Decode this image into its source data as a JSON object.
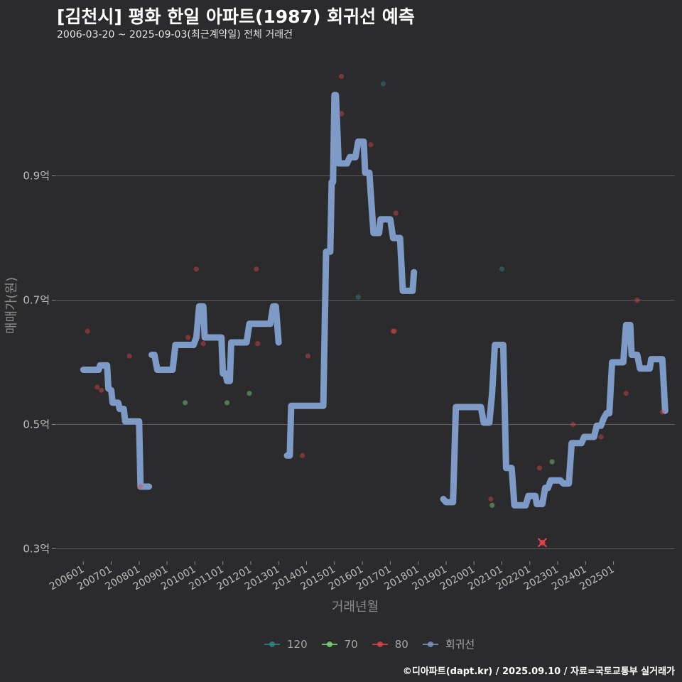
{
  "header": {
    "title": "[김천시] 평화 한일 아파트(1987) 회귀선 예측",
    "subtitle": "2006-03-20 ~ 2025-09-03(최근계약일) 전체 거래건"
  },
  "caption": "©디아파트(dapt.kr) / 2025.09.10 / 자료=국토교통부 실거래가",
  "chart_data": {
    "type": "line",
    "title": "[김천시] 평화 한일 아파트(1987) 회귀선 예측",
    "xlabel": "거래년월",
    "ylabel": "매매가(원)",
    "ylim": [
      0.28,
      1.08
    ],
    "xlim": [
      2005.0,
      2027.2
    ],
    "grid": true,
    "legend_position": "bottom",
    "y_ticks": [
      {
        "value": 0.3,
        "label": "0.3억"
      },
      {
        "value": 0.5,
        "label": "0.5억"
      },
      {
        "value": 0.7,
        "label": "0.7억"
      },
      {
        "value": 0.9,
        "label": "0.9억"
      }
    ],
    "x_ticks": [
      {
        "value": 2006.0,
        "label": "200601"
      },
      {
        "value": 2007.0,
        "label": "200701"
      },
      {
        "value": 2008.0,
        "label": "200801"
      },
      {
        "value": 2009.0,
        "label": "200901"
      },
      {
        "value": 2010.0,
        "label": "201001"
      },
      {
        "value": 2011.0,
        "label": "201101"
      },
      {
        "value": 2012.0,
        "label": "201201"
      },
      {
        "value": 2013.0,
        "label": "201301"
      },
      {
        "value": 2014.0,
        "label": "201401"
      },
      {
        "value": 2015.0,
        "label": "201501"
      },
      {
        "value": 2016.0,
        "label": "201601"
      },
      {
        "value": 2017.0,
        "label": "201701"
      },
      {
        "value": 2018.0,
        "label": "201801"
      },
      {
        "value": 2019.0,
        "label": "201901"
      },
      {
        "value": 2020.0,
        "label": "202001"
      },
      {
        "value": 2021.0,
        "label": "202101"
      },
      {
        "value": 2022.0,
        "label": "202201"
      },
      {
        "value": 2023.0,
        "label": "202301"
      },
      {
        "value": 2024.0,
        "label": "202401"
      },
      {
        "value": 2025.0,
        "label": "202501"
      }
    ],
    "legend": [
      {
        "name": "120",
        "color": "#2e8a84"
      },
      {
        "name": "70",
        "color": "#7fd97a"
      },
      {
        "name": "80",
        "color": "#e0474b"
      },
      {
        "name": "회귀선",
        "color": "#7e9bc8"
      }
    ],
    "series": [
      {
        "name": "회귀선",
        "color": "#7e9bc8",
        "segments": [
          [
            [
              2006.0,
              0.588
            ],
            [
              2006.55,
              0.588
            ],
            [
              2006.6,
              0.595
            ],
            [
              2006.85,
              0.595
            ],
            [
              2006.9,
              0.558
            ],
            [
              2007.0,
              0.555
            ],
            [
              2007.05,
              0.535
            ],
            [
              2007.25,
              0.535
            ],
            [
              2007.3,
              0.525
            ],
            [
              2007.45,
              0.525
            ],
            [
              2007.5,
              0.505
            ],
            [
              2008.0,
              0.505
            ],
            [
              2008.05,
              0.4
            ],
            [
              2008.35,
              0.4
            ]
          ],
          [
            [
              2008.45,
              0.612
            ],
            [
              2008.55,
              0.612
            ],
            [
              2008.65,
              0.588
            ],
            [
              2009.2,
              0.588
            ],
            [
              2009.3,
              0.628
            ],
            [
              2009.95,
              0.628
            ],
            [
              2010.05,
              0.64
            ],
            [
              2010.15,
              0.69
            ],
            [
              2010.3,
              0.69
            ],
            [
              2010.35,
              0.64
            ],
            [
              2010.95,
              0.64
            ],
            [
              2011.0,
              0.582
            ],
            [
              2011.1,
              0.582
            ],
            [
              2011.15,
              0.57
            ],
            [
              2011.25,
              0.57
            ],
            [
              2011.3,
              0.632
            ],
            [
              2011.85,
              0.632
            ],
            [
              2011.95,
              0.662
            ],
            [
              2012.7,
              0.662
            ],
            [
              2012.8,
              0.69
            ],
            [
              2012.9,
              0.69
            ],
            [
              2013.0,
              0.632
            ]
          ],
          [
            [
              2013.3,
              0.45
            ],
            [
              2013.4,
              0.45
            ],
            [
              2013.45,
              0.53
            ],
            [
              2014.6,
              0.53
            ],
            [
              2014.7,
              0.778
            ],
            [
              2014.85,
              0.778
            ],
            [
              2014.9,
              0.89
            ],
            [
              2014.95,
              0.89
            ],
            [
              2015.0,
              1.03
            ],
            [
              2015.05,
              1.03
            ],
            [
              2015.15,
              0.92
            ],
            [
              2015.45,
              0.92
            ],
            [
              2015.55,
              0.93
            ],
            [
              2015.75,
              0.93
            ],
            [
              2015.85,
              0.955
            ],
            [
              2016.05,
              0.955
            ],
            [
              2016.1,
              0.905
            ],
            [
              2016.25,
              0.905
            ],
            [
              2016.35,
              0.84
            ],
            [
              2016.4,
              0.808
            ],
            [
              2016.6,
              0.808
            ],
            [
              2016.65,
              0.83
            ],
            [
              2017.0,
              0.83
            ],
            [
              2017.1,
              0.8
            ],
            [
              2017.35,
              0.8
            ],
            [
              2017.45,
              0.715
            ],
            [
              2017.8,
              0.715
            ],
            [
              2017.85,
              0.745
            ]
          ],
          [
            [
              2018.9,
              0.38
            ],
            [
              2019.0,
              0.375
            ],
            [
              2019.25,
              0.375
            ],
            [
              2019.35,
              0.528
            ],
            [
              2020.25,
              0.528
            ],
            [
              2020.35,
              0.503
            ],
            [
              2020.55,
              0.503
            ],
            [
              2020.65,
              0.55
            ],
            [
              2020.75,
              0.628
            ],
            [
              2021.05,
              0.628
            ],
            [
              2021.15,
              0.43
            ],
            [
              2021.35,
              0.43
            ],
            [
              2021.45,
              0.37
            ],
            [
              2021.85,
              0.37
            ],
            [
              2021.95,
              0.385
            ],
            [
              2022.2,
              0.385
            ],
            [
              2022.25,
              0.372
            ],
            [
              2022.45,
              0.372
            ],
            [
              2022.55,
              0.398
            ],
            [
              2022.65,
              0.398
            ],
            [
              2022.75,
              0.41
            ],
            [
              2023.1,
              0.41
            ],
            [
              2023.2,
              0.405
            ],
            [
              2023.4,
              0.405
            ],
            [
              2023.5,
              0.47
            ],
            [
              2023.85,
              0.47
            ],
            [
              2023.95,
              0.48
            ],
            [
              2024.3,
              0.48
            ],
            [
              2024.4,
              0.498
            ],
            [
              2024.55,
              0.498
            ],
            [
              2024.65,
              0.51
            ],
            [
              2024.75,
              0.518
            ],
            [
              2024.85,
              0.518
            ],
            [
              2024.95,
              0.6
            ],
            [
              2025.35,
              0.6
            ],
            [
              2025.45,
              0.66
            ],
            [
              2025.6,
              0.66
            ],
            [
              2025.65,
              0.612
            ],
            [
              2025.85,
              0.612
            ],
            [
              2025.95,
              0.59
            ],
            [
              2026.3,
              0.59
            ],
            [
              2026.35,
              0.605
            ],
            [
              2026.75,
              0.605
            ],
            [
              2026.85,
              0.522
            ]
          ]
        ]
      },
      {
        "name": "80",
        "color": "#e0474b",
        "points": [
          [
            2006.15,
            0.65
          ],
          [
            2006.5,
            0.56
          ],
          [
            2006.65,
            0.555
          ],
          [
            2007.65,
            0.61
          ],
          [
            2008.05,
            0.4
          ],
          [
            2009.75,
            0.64
          ],
          [
            2010.05,
            0.75
          ],
          [
            2010.3,
            0.63
          ],
          [
            2012.2,
            0.75
          ],
          [
            2012.25,
            0.63
          ],
          [
            2013.85,
            0.45
          ],
          [
            2014.05,
            0.61
          ],
          [
            2015.25,
            1.06
          ],
          [
            2015.25,
            1.0
          ],
          [
            2016.3,
            0.95
          ],
          [
            2017.1,
            0.65
          ],
          [
            2017.15,
            0.65
          ],
          [
            2017.2,
            0.84
          ],
          [
            2020.6,
            0.38
          ],
          [
            2022.35,
            0.43
          ],
          [
            2023.55,
            0.5
          ],
          [
            2024.55,
            0.48
          ],
          [
            2025.45,
            0.55
          ],
          [
            2025.85,
            0.7
          ],
          [
            2026.75,
            0.52
          ]
        ]
      },
      {
        "name": "70",
        "color": "#7fd97a",
        "points": [
          [
            2009.65,
            0.535
          ],
          [
            2011.15,
            0.535
          ],
          [
            2011.95,
            0.55
          ],
          [
            2020.65,
            0.37
          ],
          [
            2022.8,
            0.44
          ]
        ]
      },
      {
        "name": "120",
        "color": "#2e8a84",
        "points": [
          [
            2016.75,
            1.048
          ],
          [
            2015.85,
            0.705
          ],
          [
            2021.0,
            0.75
          ]
        ]
      }
    ],
    "annotations": [
      {
        "type": "cross",
        "x": 2022.45,
        "y": 0.31,
        "color": "#e0474b"
      }
    ]
  }
}
